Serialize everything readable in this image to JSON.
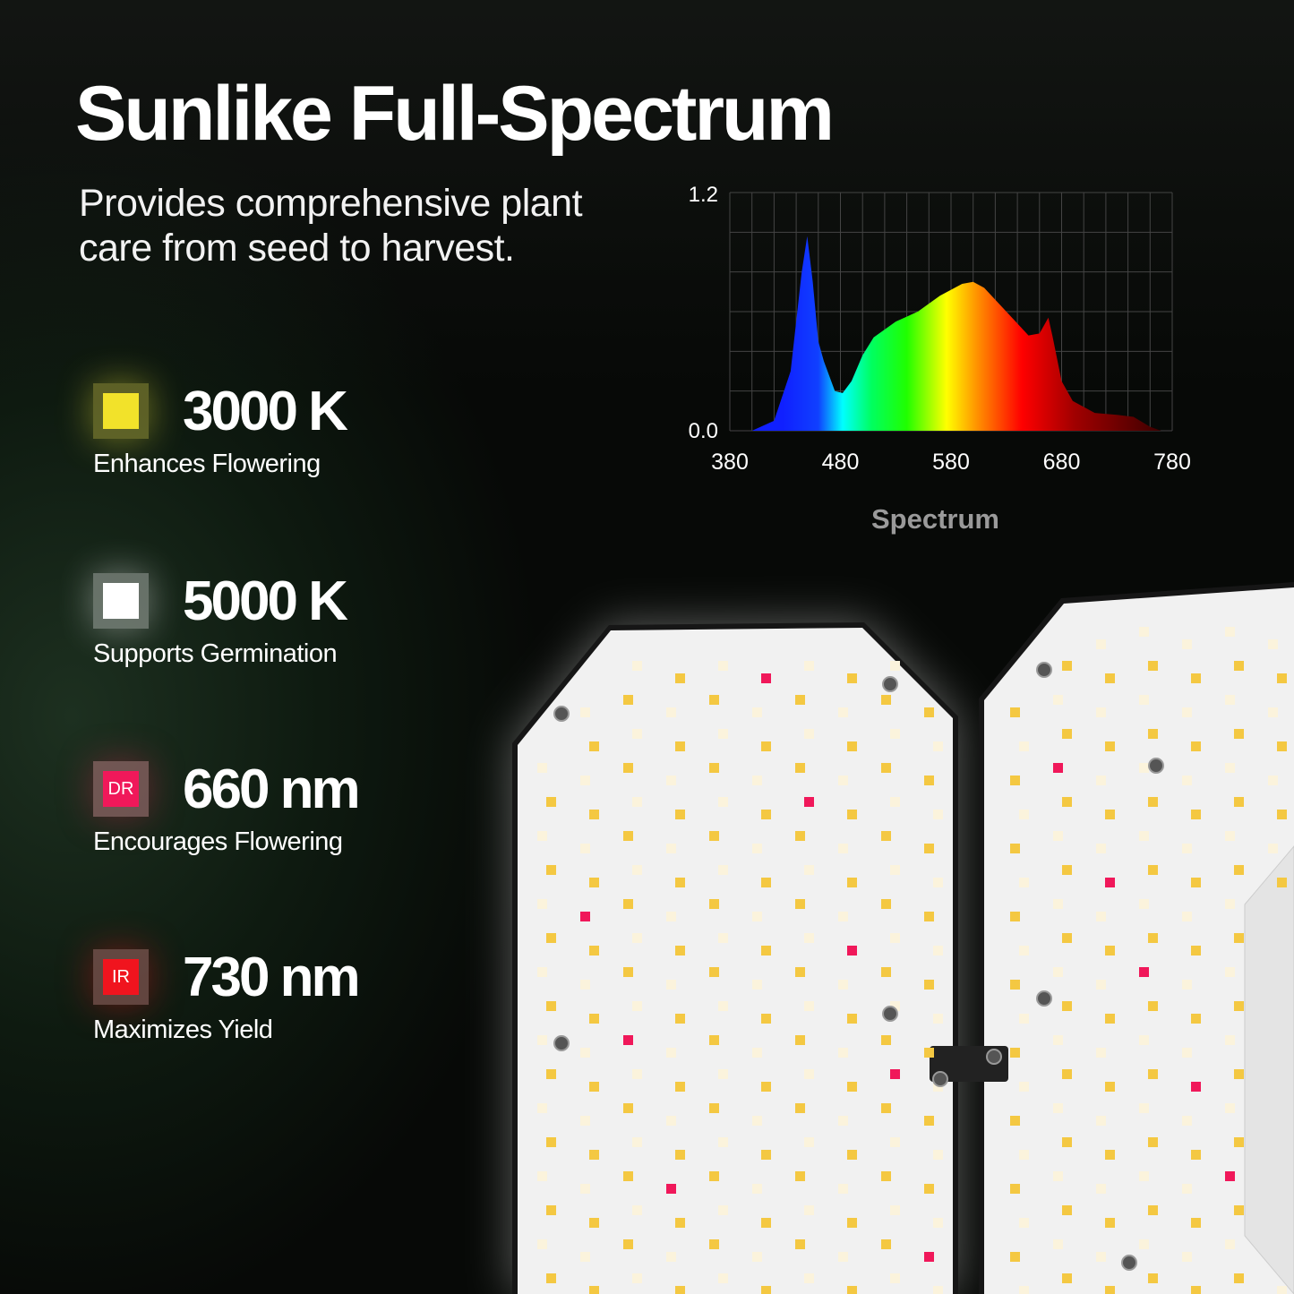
{
  "header": {
    "title": "Sunlike Full-Spectrum",
    "subtitle": "Provides comprehensive plant care from seed to harvest."
  },
  "features": [
    {
      "value": "3000 K",
      "description": "Enhances Flowering",
      "badge": "",
      "color": "#f2e22a"
    },
    {
      "value": "5000 K",
      "description": "Supports Germination",
      "badge": "",
      "color": "#ffffff"
    },
    {
      "value": "660 nm",
      "description": "Encourages Flowering",
      "badge": "DR",
      "color": "#f0185a"
    },
    {
      "value": "730 nm",
      "description": "Maximizes Yield",
      "badge": "IR",
      "color": "#f0141e"
    }
  ],
  "chart_data": {
    "type": "area",
    "title": "Spectrum",
    "xlabel": "",
    "ylabel": "",
    "xlim": [
      380,
      780
    ],
    "ylim": [
      0,
      1.2
    ],
    "x_ticks": [
      "380",
      "480",
      "580",
      "680",
      "780"
    ],
    "y_ticks": [
      "0.0",
      "1.2"
    ],
    "grid": true,
    "x": [
      400,
      420,
      435,
      445,
      450,
      455,
      460,
      465,
      475,
      482,
      490,
      500,
      510,
      530,
      550,
      570,
      590,
      600,
      610,
      630,
      650,
      660,
      668,
      672,
      680,
      690,
      710,
      730,
      745,
      760,
      770
    ],
    "values": [
      0,
      0.05,
      0.3,
      0.8,
      0.98,
      0.75,
      0.45,
      0.35,
      0.2,
      0.19,
      0.25,
      0.38,
      0.47,
      0.55,
      0.6,
      0.68,
      0.74,
      0.75,
      0.72,
      0.6,
      0.48,
      0.49,
      0.57,
      0.47,
      0.25,
      0.15,
      0.09,
      0.08,
      0.07,
      0.02,
      0
    ],
    "colors": {
      "blue": "#1030ff",
      "cyan": "#00ffff",
      "green": "#00ff40",
      "yellow": "#ffff00",
      "orange": "#ff8000",
      "red": "#ff0000",
      "dark_red": "#400000"
    }
  }
}
